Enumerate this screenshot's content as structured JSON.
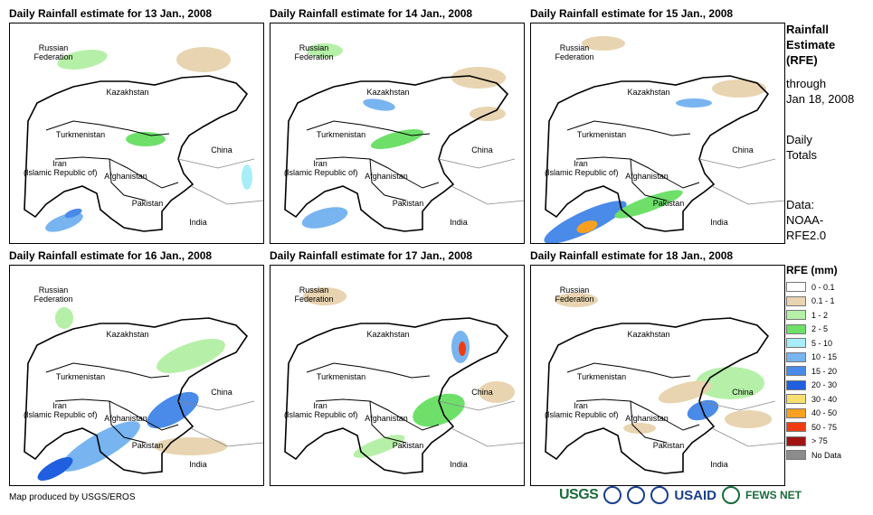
{
  "panels": [
    {
      "title": "Daily Rainfall estimate for 13 Jan., 2008"
    },
    {
      "title": "Daily Rainfall estimate for 14 Jan., 2008"
    },
    {
      "title": "Daily Rainfall estimate for 15 Jan., 2008"
    },
    {
      "title": "Daily Rainfall estimate for 16 Jan., 2008"
    },
    {
      "title": "Daily Rainfall estimate for 17 Jan., 2008"
    },
    {
      "title": "Daily Rainfall estimate for 18 Jan., 2008"
    }
  ],
  "map_labels": {
    "russia": "Russian\nFederation",
    "kazakhstan": "Kazakhstan",
    "turkmenistan": "Turkmenistan",
    "iran": "Iran\n(Islamic Republic of)",
    "afghanistan": "Afghanistan",
    "pakistan": "Pakistan",
    "china": "China",
    "india": "India"
  },
  "sidebar": {
    "title": "Rainfall\nEstimate\n(RFE)",
    "through": "through\nJan 18, 2008",
    "totals": "Daily\nTotals",
    "source": "Data:\nNOAA-\nRFE2.0"
  },
  "legend": {
    "title": "RFE (mm)",
    "items": [
      {
        "label": "0 - 0.1",
        "color": "#ffffff"
      },
      {
        "label": "0.1 - 1",
        "color": "#e8d4b0"
      },
      {
        "label": "1 - 2",
        "color": "#b6f0a8"
      },
      {
        "label": "2 - 5",
        "color": "#6ee06a"
      },
      {
        "label": "5 - 10",
        "color": "#a8eef8"
      },
      {
        "label": "10 - 15",
        "color": "#78b4f0"
      },
      {
        "label": "15 - 20",
        "color": "#4a8ae8"
      },
      {
        "label": "20 - 30",
        "color": "#1f5fe0"
      },
      {
        "label": "30 - 40",
        "color": "#f8e070"
      },
      {
        "label": "40 - 50",
        "color": "#f8a020"
      },
      {
        "label": "50 - 75",
        "color": "#f03c10"
      },
      {
        "label": "> 75",
        "color": "#a01414"
      },
      {
        "label": "No Data",
        "color": "#8c8c8c"
      }
    ]
  },
  "credit": "Map produced by USGS/EROS",
  "logos": {
    "usgs": "USGS",
    "usaid": "USAID",
    "fews": "FEWS NET"
  }
}
